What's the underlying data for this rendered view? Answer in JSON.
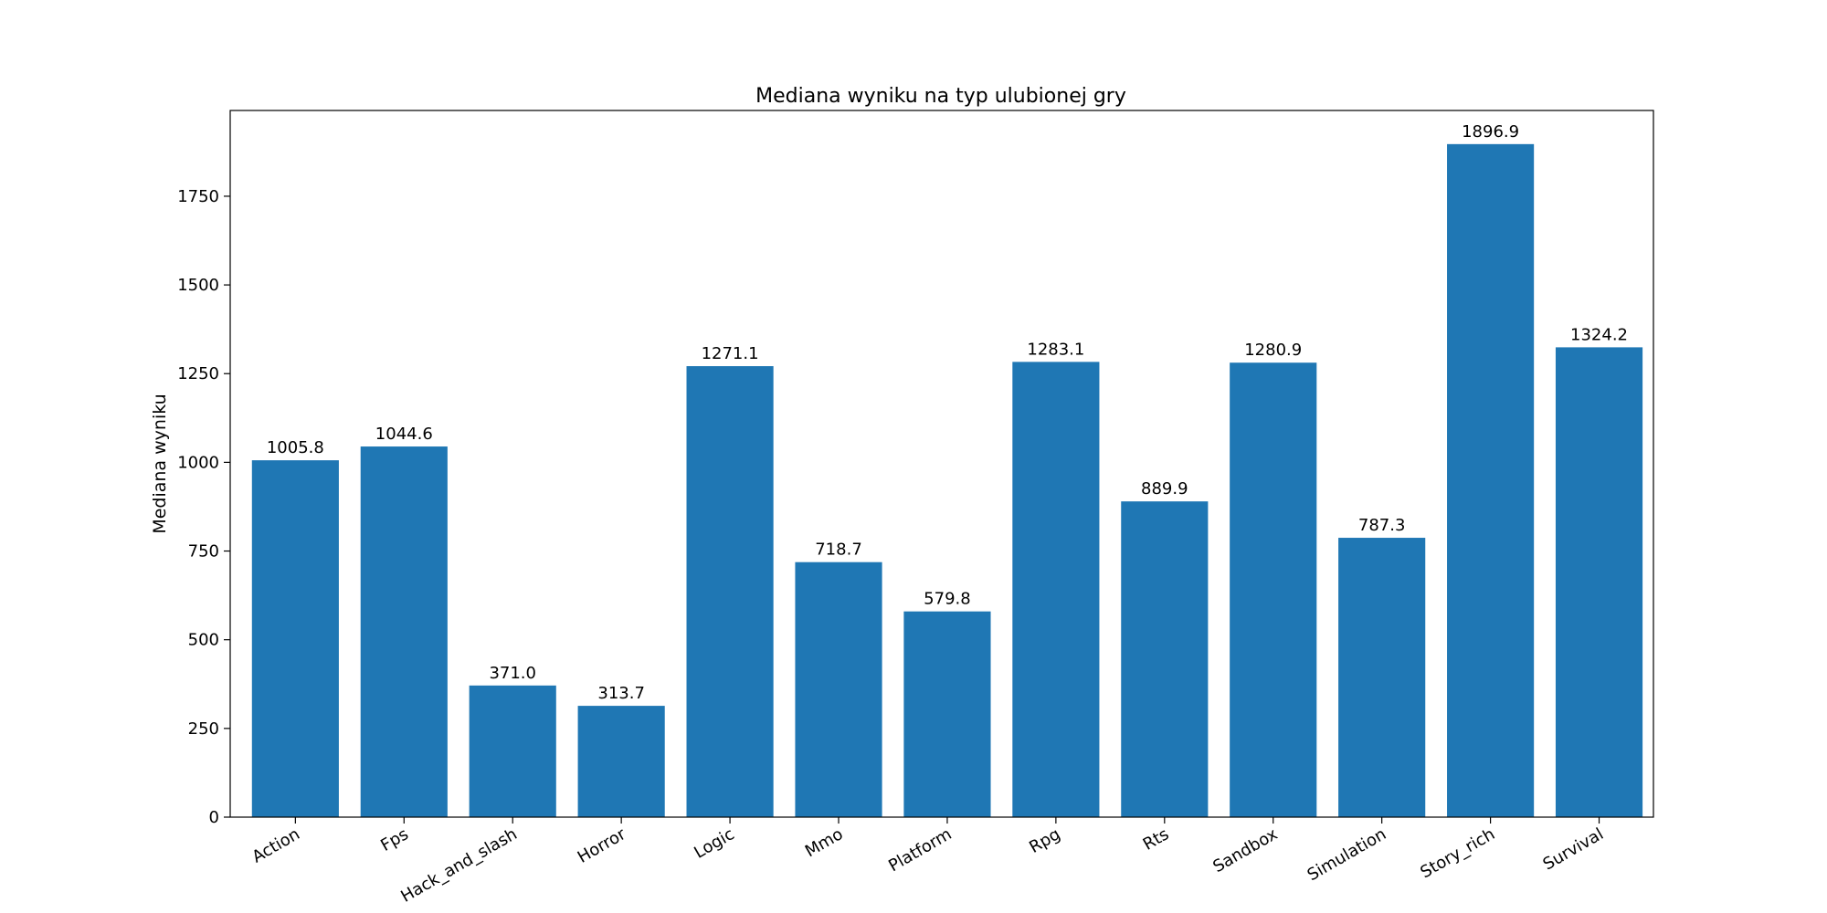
{
  "chart_data": {
    "type": "bar",
    "title": "Mediana wyniku na typ ulubionej gry",
    "xlabel": "",
    "ylabel": "Mediana wyniku",
    "categories": [
      "Action",
      "Fps",
      "Hack_and_slash",
      "Horror",
      "Logic",
      "Mmo",
      "Platform",
      "Rpg",
      "Rts",
      "Sandbox",
      "Simulation",
      "Story_rich",
      "Survival"
    ],
    "values": [
      1005.8,
      1044.6,
      371.0,
      313.7,
      1271.1,
      718.7,
      579.8,
      1283.1,
      889.9,
      1280.9,
      787.3,
      1896.9,
      1324.2
    ],
    "data_labels": [
      "1005.8",
      "1044.6",
      "371.0",
      "313.7",
      "1271.1",
      "718.7",
      "579.8",
      "1283.1",
      "889.9",
      "1280.9",
      "787.3",
      "1896.9",
      "1324.2"
    ],
    "yticks": [
      0,
      250,
      500,
      750,
      1000,
      1250,
      1500,
      1750
    ],
    "ylim": [
      0,
      1991.7
    ],
    "grid": false,
    "bar_color": "#1f77b4",
    "x_tick_rotation_deg": 30
  }
}
